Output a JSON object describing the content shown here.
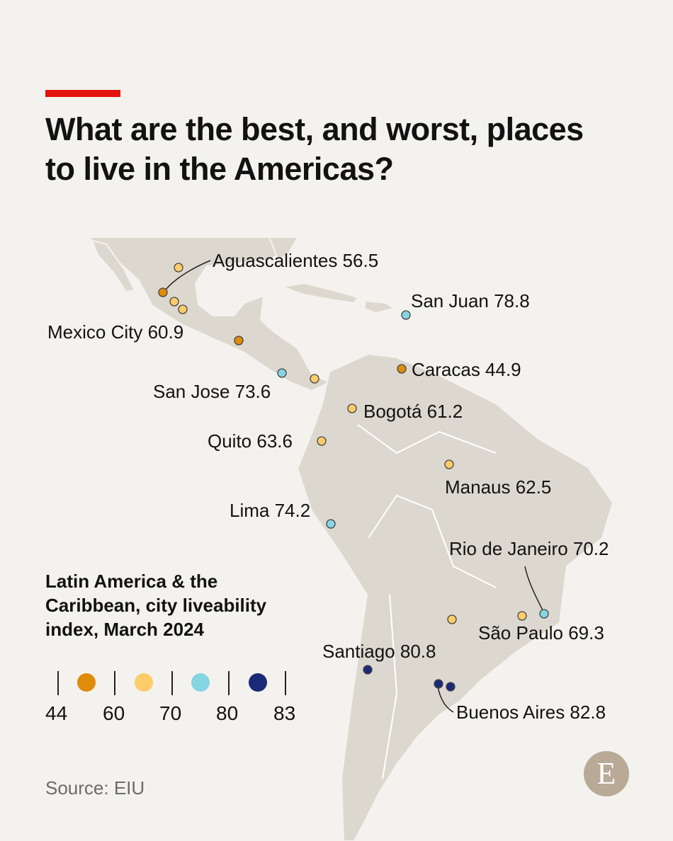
{
  "header": {
    "title": "What are the best, and worst, places to live in the Americas?"
  },
  "legend": {
    "title": "Latin America & the Caribbean, city liveability index, March 2024",
    "breaks": [
      "44",
      "60",
      "70",
      "80",
      "83"
    ],
    "colors": [
      "#df8c0a",
      "#fdcc6a",
      "#86d5e3",
      "#1a2a78"
    ]
  },
  "cities": [
    {
      "label": "Aguascalientes 56.5",
      "value": 56.5,
      "color": "#df8c0a"
    },
    {
      "label": "Mexico City 60.9",
      "value": 60.9,
      "color": "#fdcc6a"
    },
    {
      "label": "San Juan 78.8",
      "value": 78.8,
      "color": "#86d5e3"
    },
    {
      "label": "Caracas 44.9",
      "value": 44.9,
      "color": "#df8c0a"
    },
    {
      "label": "San Jose 73.6",
      "value": 73.6,
      "color": "#86d5e3"
    },
    {
      "label": "Bogotá 61.2",
      "value": 61.2,
      "color": "#fdcc6a"
    },
    {
      "label": "Quito 63.6",
      "value": 63.6,
      "color": "#fdcc6a"
    },
    {
      "label": "Manaus 62.5",
      "value": 62.5,
      "color": "#fdcc6a"
    },
    {
      "label": "Lima 74.2",
      "value": 74.2,
      "color": "#86d5e3"
    },
    {
      "label": "Rio de Janeiro 70.2",
      "value": 70.2,
      "color": "#86d5e3"
    },
    {
      "label": "São Paulo 69.3",
      "value": 69.3,
      "color": "#fdcc6a"
    },
    {
      "label": "Santiago 80.8",
      "value": 80.8,
      "color": "#1a2a78"
    },
    {
      "label": "Buenos Aires 82.8",
      "value": 82.8,
      "color": "#1a2a78"
    }
  ],
  "source": "Source: EIU",
  "logo": "E",
  "colors": {
    "accent": "#e3120b",
    "land": "#dcd8d0",
    "background": "#f4f2ee"
  }
}
